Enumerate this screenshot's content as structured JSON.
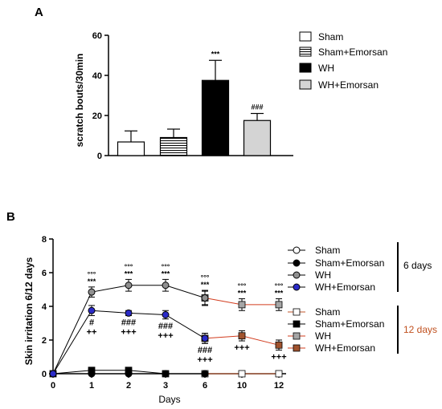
{
  "chart_data": [
    {
      "panel": "A",
      "type": "bar",
      "ylabel": "scratch bouts/30min",
      "ylim": [
        0,
        60
      ],
      "yticks": [
        "0",
        "20",
        "40",
        "60"
      ],
      "categories": [
        "Sham",
        "Sham+Emorsan",
        "WH",
        "WH+Emorsan"
      ],
      "values": [
        6.8,
        9.0,
        37.5,
        17.5
      ],
      "errors": [
        5.5,
        4.2,
        10.0,
        3.5
      ],
      "fills": [
        "#ffffff",
        "stripes",
        "#000000",
        "#d4d4d4"
      ],
      "annotations": [
        "",
        "",
        "***",
        "###"
      ],
      "legend": [
        "Sham",
        "Sham+Emorsan",
        "WH",
        "WH+Emorsan"
      ]
    },
    {
      "panel": "B",
      "type": "line",
      "xlabel": "Days",
      "ylabel": "Skin irritation 6/12 days",
      "ylim": [
        0,
        8
      ],
      "yticks": [
        "0",
        "2",
        "4",
        "6",
        "8"
      ],
      "x": [
        "0",
        "1",
        "2",
        "3",
        "6",
        "10",
        "12"
      ],
      "series": [
        {
          "name": "Sham",
          "group": "6 days",
          "values": [
            0,
            0,
            0,
            0,
            0,
            null,
            null
          ],
          "marker": "circle",
          "color": "#ffffff",
          "line": "#000000"
        },
        {
          "name": "Sham+Emorsan",
          "group": "6 days",
          "values": [
            0,
            0,
            0,
            0,
            0,
            null,
            null
          ],
          "marker": "circle",
          "color": "#000000",
          "line": "#000000"
        },
        {
          "name": "WH",
          "group": "6 days",
          "values": [
            0,
            4.85,
            5.25,
            5.25,
            4.5,
            null,
            null
          ],
          "errors": [
            0,
            0.3,
            0.35,
            0.35,
            0.45,
            null,
            null
          ],
          "marker": "circle",
          "color": "#909090",
          "line": "#000000"
        },
        {
          "name": "WH+Emorsan",
          "group": "6 days",
          "values": [
            0,
            3.75,
            3.6,
            3.5,
            2.1,
            null,
            null
          ],
          "errors": [
            0,
            0.3,
            0.15,
            0.25,
            0.3,
            null,
            null
          ],
          "marker": "circle",
          "color": "#2b2bc8",
          "line": "#000000"
        },
        {
          "name": "Sham",
          "group": "12 days",
          "values": [
            null,
            null,
            null,
            null,
            0,
            0,
            0
          ],
          "marker": "square",
          "color": "#ffffff",
          "line": "#c0542a"
        },
        {
          "name": "Sham+Emorsan",
          "group": "12 days",
          "values": [
            0,
            0.2,
            0.2,
            0,
            null,
            null,
            null
          ],
          "marker": "square",
          "color": "#000000",
          "line": "#000000"
        },
        {
          "name": "WH",
          "group": "12 days",
          "values": [
            null,
            null,
            null,
            null,
            4.5,
            4.1,
            4.1
          ],
          "errors": [
            null,
            null,
            null,
            null,
            0.4,
            0.35,
            0.35
          ],
          "marker": "square",
          "color": "#a6a6a6",
          "line": "#d23c1e"
        },
        {
          "name": "WH+Emorsan",
          "group": "12 days",
          "values": [
            null,
            null,
            null,
            null,
            2.1,
            2.25,
            1.7
          ],
          "errors": [
            null,
            null,
            null,
            null,
            0.3,
            0.3,
            0.3
          ],
          "marker": "square",
          "color": "#a0522d",
          "line": "#d23c1e"
        }
      ],
      "annotations": [
        {
          "x": "1",
          "above": [
            "°°°",
            "***"
          ],
          "below": [
            "#",
            "++"
          ]
        },
        {
          "x": "2",
          "above": [
            "°°°",
            "***"
          ],
          "below": [
            "###",
            "+++"
          ]
        },
        {
          "x": "3",
          "above": [
            "°°°",
            "***"
          ],
          "below": [
            "###",
            "+++"
          ]
        },
        {
          "x": "6",
          "above": [
            "°°°",
            "***"
          ],
          "below": [
            "###",
            "+++"
          ]
        },
        {
          "x": "10",
          "above": [
            "°°°",
            "***"
          ],
          "below": [
            "+++"
          ]
        },
        {
          "x": "12",
          "above": [
            "°°°",
            "***"
          ],
          "below": [
            "+++"
          ]
        }
      ],
      "groups": [
        {
          "label": "6 days",
          "color": "#000000"
        },
        {
          "label": "12 days",
          "color": "#c0501e"
        }
      ]
    }
  ]
}
